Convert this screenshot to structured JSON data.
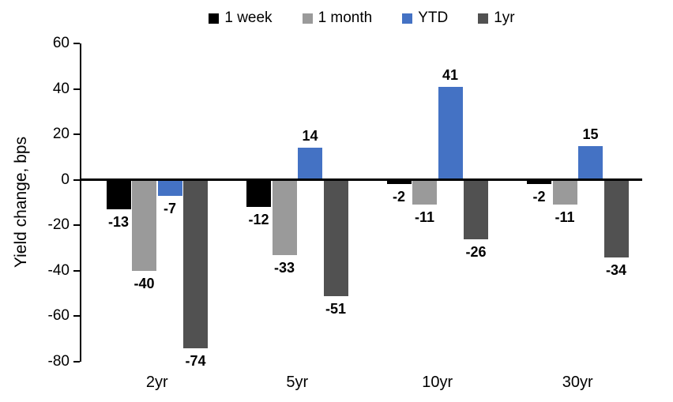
{
  "chart_data": {
    "type": "bar",
    "title": "",
    "ylabel": "Yield change, bps",
    "categories": [
      "2yr",
      "5yr",
      "10yr",
      "30yr"
    ],
    "series": [
      {
        "name": "1 week",
        "color": "#000000",
        "values": [
          -13,
          -12,
          -2,
          -2
        ]
      },
      {
        "name": "1 month",
        "color": "#9A9A9A",
        "values": [
          -40,
          -33,
          -11,
          -11
        ]
      },
      {
        "name": "YTD",
        "color": "#4472C4",
        "values": [
          -7,
          14,
          41,
          15
        ]
      },
      {
        "name": "1yr",
        "color": "#515151",
        "values": [
          -74,
          -51,
          -26,
          -34
        ]
      }
    ],
    "ylim": [
      -80,
      60
    ],
    "yticks": [
      60,
      40,
      20,
      0,
      -20,
      -40,
      -60,
      -80
    ],
    "legend_position": "top",
    "grid": false,
    "data_labels": true,
    "axis_color": "#000000"
  }
}
